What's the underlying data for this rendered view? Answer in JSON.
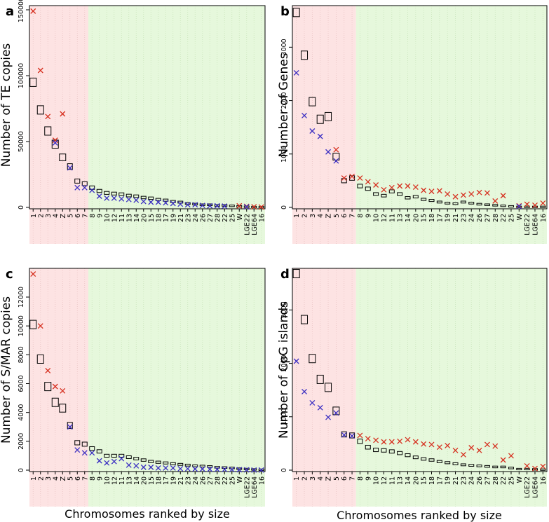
{
  "figure": {
    "xlabel": "Chromosomes ranked by size",
    "colors": {
      "region_large": "#fde3e3",
      "region_small": "#e6f8dc",
      "grid_large": "#e9c4c4",
      "grid_small": "#c9e4bb",
      "cross_red": "#d62f1f",
      "cross_blue": "#3a2ec2",
      "box": "#000000"
    },
    "marker_legend": {
      "box": "rectangle (black outline)",
      "red": "red cross",
      "blue": "blue cross"
    }
  },
  "chart_data": [
    {
      "panel": "a",
      "type": "scatter",
      "ylabel": "Number of TE copies",
      "ylim": [
        0,
        150000
      ],
      "yticks": [
        0,
        50000,
        100000,
        150000
      ],
      "categories": [
        "1",
        "2",
        "3",
        "4",
        "Z",
        "5",
        "6",
        "7",
        "8",
        "9",
        "10",
        "12",
        "11",
        "13",
        "14",
        "20",
        "15",
        "18",
        "17",
        "19",
        "21",
        "23",
        "24",
        "26",
        "27",
        "28",
        "22",
        "25",
        "W",
        "LGE22",
        "LGE64",
        "16"
      ],
      "shaded_large_count": 8,
      "series": [
        {
          "marker": "box",
          "values": [
            95000,
            74000,
            58000,
            48000,
            38000,
            31000,
            20000,
            18000,
            15000,
            12500,
            11000,
            10500,
            10000,
            9000,
            8500,
            7500,
            7000,
            6000,
            5500,
            4500,
            4000,
            3000,
            2500,
            2000,
            2000,
            1500,
            1500,
            1200,
            800,
            500,
            300,
            200
          ]
        },
        {
          "marker": "red",
          "values": [
            149000,
            104000,
            69000,
            51000,
            71000,
            null,
            null,
            null,
            null,
            null,
            null,
            null,
            null,
            null,
            null,
            null,
            null,
            null,
            null,
            null,
            null,
            null,
            null,
            null,
            null,
            null,
            null,
            null,
            1200,
            800,
            500,
            300
          ]
        },
        {
          "marker": "blue",
          "values": [
            null,
            null,
            null,
            49000,
            null,
            30000,
            15000,
            15000,
            13000,
            8500,
            7000,
            7000,
            6500,
            6000,
            5500,
            4500,
            4000,
            4000,
            3500,
            3000,
            2500,
            2000,
            2000,
            1500,
            1200,
            1200,
            1000,
            null,
            null,
            500,
            null,
            null
          ]
        }
      ]
    },
    {
      "panel": "b",
      "type": "scatter",
      "ylabel": "Number of Genes",
      "ylim": [
        0,
        3700
      ],
      "yticks": [
        0,
        1000,
        2000,
        3000
      ],
      "categories": [
        "1",
        "2",
        "3",
        "4",
        "Z",
        "5",
        "6",
        "7",
        "8",
        "9",
        "10",
        "12",
        "11",
        "13",
        "14",
        "20",
        "15",
        "18",
        "17",
        "19",
        "21",
        "23",
        "24",
        "26",
        "27",
        "28",
        "22",
        "25",
        "W",
        "LGE22",
        "LGE64",
        "16"
      ],
      "shaded_large_count": 8,
      "series": [
        {
          "marker": "box",
          "values": [
            3650,
            2850,
            1980,
            1650,
            1700,
            950,
            500,
            550,
            400,
            350,
            250,
            220,
            300,
            250,
            180,
            200,
            150,
            130,
            100,
            80,
            70,
            100,
            80,
            60,
            50,
            40,
            30,
            20,
            10,
            10,
            10,
            10
          ]
        },
        {
          "marker": "red",
          "values": [
            null,
            null,
            null,
            null,
            null,
            1080,
            550,
            580,
            550,
            480,
            420,
            330,
            370,
            400,
            400,
            380,
            320,
            300,
            310,
            250,
            200,
            230,
            250,
            280,
            270,
            120,
            220,
            null,
            30,
            60,
            40,
            80
          ]
        },
        {
          "marker": "blue",
          "values": [
            2520,
            1720,
            1430,
            1330,
            1040,
            870,
            null,
            null,
            null,
            null,
            null,
            null,
            null,
            null,
            null,
            null,
            null,
            null,
            null,
            null,
            null,
            null,
            null,
            null,
            null,
            null,
            null,
            null,
            20,
            null,
            null,
            null
          ]
        }
      ]
    },
    {
      "panel": "c",
      "type": "scatter",
      "ylabel": "Number of S/MAR copies",
      "ylim": [
        0,
        13700
      ],
      "yticks": [
        0,
        2000,
        4000,
        6000,
        8000,
        10000,
        12000
      ],
      "categories": [
        "1",
        "2",
        "3",
        "4",
        "Z",
        "5",
        "6",
        "7",
        "8",
        "9",
        "10",
        "12",
        "11",
        "13",
        "14",
        "20",
        "15",
        "18",
        "17",
        "19",
        "21",
        "23",
        "24",
        "26",
        "27",
        "28",
        "22",
        "25",
        "W",
        "LGE22",
        "LGE64",
        "16"
      ],
      "shaded_large_count": 8,
      "series": [
        {
          "marker": "box",
          "values": [
            10100,
            7700,
            5800,
            4700,
            4300,
            3100,
            1900,
            1800,
            1500,
            1300,
            1000,
            1000,
            1000,
            900,
            800,
            700,
            600,
            550,
            500,
            450,
            400,
            350,
            300,
            280,
            250,
            200,
            180,
            150,
            100,
            80,
            50,
            30
          ]
        },
        {
          "marker": "red",
          "values": [
            13600,
            10000,
            6900,
            5800,
            5500,
            null,
            null,
            null,
            null,
            null,
            null,
            null,
            null,
            null,
            null,
            null,
            null,
            null,
            null,
            null,
            null,
            null,
            null,
            null,
            null,
            null,
            null,
            null,
            null,
            null,
            null,
            null
          ]
        },
        {
          "marker": "blue",
          "values": [
            null,
            null,
            null,
            null,
            null,
            3000,
            1400,
            1200,
            1200,
            650,
            500,
            600,
            800,
            350,
            300,
            200,
            200,
            150,
            150,
            150,
            100,
            100,
            80,
            80,
            60,
            50,
            50,
            40,
            30,
            20,
            10,
            10
          ]
        }
      ]
    },
    {
      "panel": "d",
      "type": "scatter",
      "ylabel": "Number of CpG islands",
      "ylim": [
        0,
        3700
      ],
      "yticks": [
        0,
        1000,
        2000,
        3000
      ],
      "categories": [
        "1",
        "2",
        "3",
        "4",
        "Z",
        "5",
        "6",
        "7",
        "8",
        "9",
        "10",
        "12",
        "11",
        "13",
        "14",
        "20",
        "15",
        "18",
        "17",
        "19",
        "21",
        "23",
        "24",
        "26",
        "27",
        "28",
        "22",
        "25",
        "W",
        "LGE22",
        "LGE64",
        "16"
      ],
      "shaded_large_count": 8,
      "series": [
        {
          "marker": "box",
          "values": [
            3680,
            2820,
            2090,
            1700,
            1550,
            1110,
            670,
            650,
            540,
            430,
            380,
            370,
            350,
            320,
            280,
            240,
            210,
            190,
            160,
            140,
            120,
            100,
            90,
            80,
            70,
            60,
            60,
            40,
            20,
            20,
            15,
            10
          ]
        },
        {
          "marker": "red",
          "values": [
            null,
            null,
            null,
            null,
            null,
            null,
            null,
            null,
            650,
            590,
            560,
            530,
            530,
            540,
            570,
            530,
            490,
            480,
            430,
            460,
            370,
            290,
            420,
            370,
            480,
            450,
            190,
            270,
            null,
            80,
            30,
            70
          ]
        },
        {
          "marker": "blue",
          "values": [
            2040,
            1470,
            1260,
            1170,
            990,
            1070,
            660,
            640,
            null,
            null,
            null,
            null,
            null,
            null,
            null,
            null,
            null,
            null,
            null,
            null,
            null,
            null,
            null,
            null,
            null,
            null,
            null,
            null,
            null,
            null,
            null,
            null
          ]
        }
      ]
    }
  ]
}
